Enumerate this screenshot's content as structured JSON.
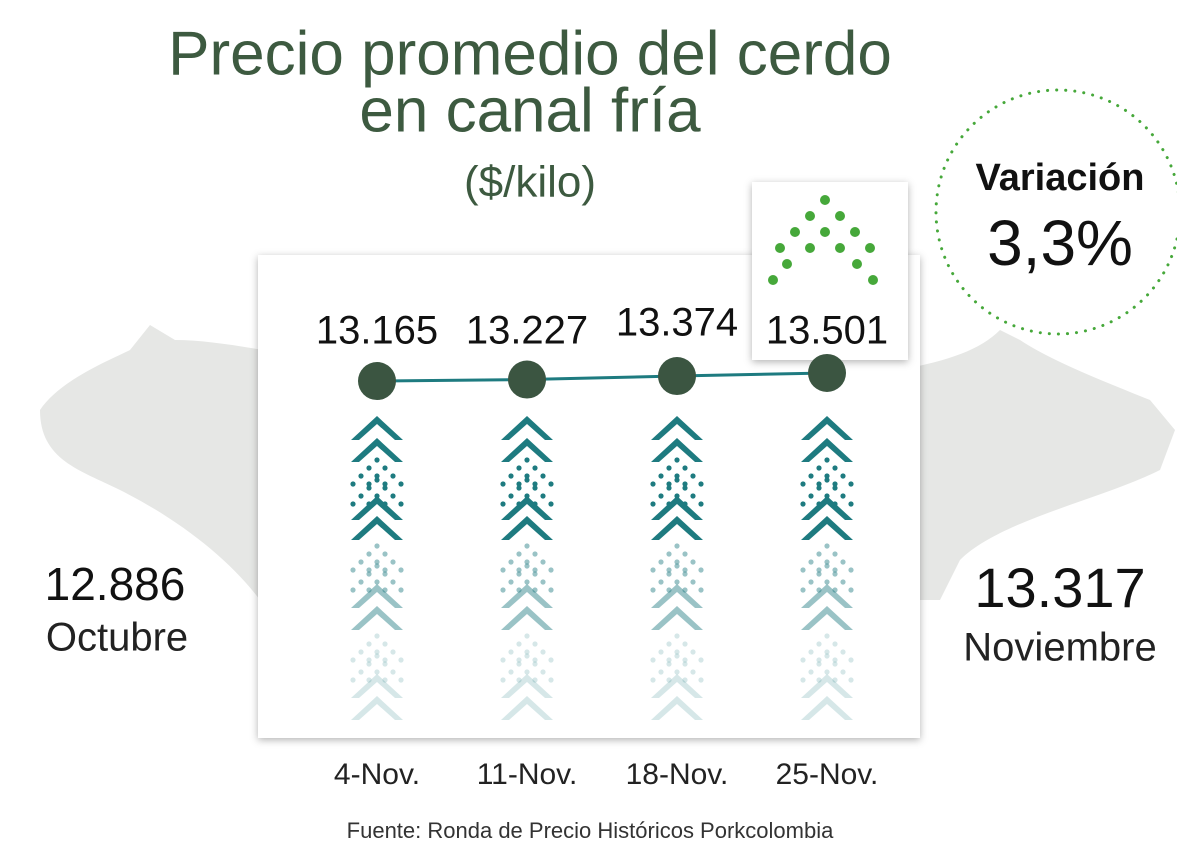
{
  "chart_data": {
    "type": "line",
    "title": "Precio promedio del cerdo en canal fría",
    "subtitle": "($/kilo)",
    "categories": [
      "4-Nov.",
      "11-Nov.",
      "18-Nov.",
      "25-Nov."
    ],
    "values": [
      13165,
      13227,
      13374,
      13501
    ],
    "value_labels": [
      "13.165",
      "13.227",
      "13.374",
      "13.501"
    ],
    "ylim": [
      5000,
      14000
    ],
    "color": "#1e7b80",
    "marker_color": "#3b5541"
  },
  "summary": {
    "previous": {
      "value": "12.886",
      "label": "Octubre"
    },
    "current": {
      "value": "13.317",
      "label": "Noviembre"
    },
    "variation": {
      "label": "Variación",
      "value": "3,3%"
    }
  },
  "source": "Fuente: Ronda de Precio Históricos Porkcolombia"
}
